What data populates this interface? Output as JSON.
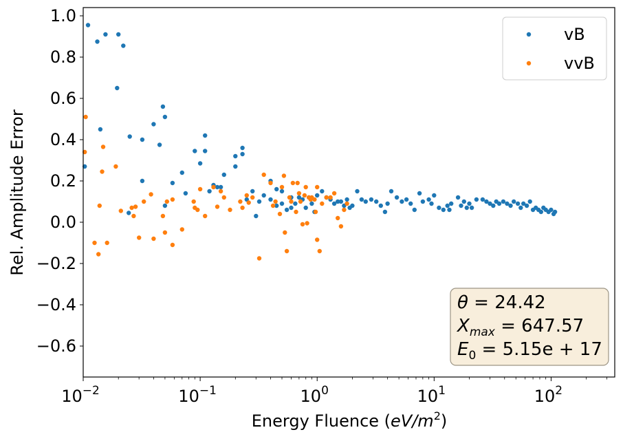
{
  "chart_data": {
    "type": "scatter",
    "title": "",
    "xlabel": "Energy Fluence ",
    "xlabel_unit": "eV/m",
    "xlabel_unit_exp": "2",
    "ylabel": "Rel. Amplitude Error",
    "xscale": "log",
    "xlim": [
      0.01,
      350
    ],
    "ylim": [
      -0.75,
      1.04
    ],
    "grid": false,
    "legend_position": "top-right",
    "x_ticks": [
      {
        "value": 0.01,
        "base": "10",
        "exp": "−2"
      },
      {
        "value": 0.1,
        "base": "10",
        "exp": "−1"
      },
      {
        "value": 1,
        "base": "10",
        "exp": "0"
      },
      {
        "value": 10,
        "base": "10",
        "exp": "1"
      },
      {
        "value": 100,
        "base": "10",
        "exp": "2"
      }
    ],
    "y_ticks": [
      {
        "value": -0.6,
        "label": "−0.6"
      },
      {
        "value": -0.4,
        "label": "−0.4"
      },
      {
        "value": -0.2,
        "label": "−0.2"
      },
      {
        "value": 0.0,
        "label": "0.0"
      },
      {
        "value": 0.2,
        "label": "0.2"
      },
      {
        "value": 0.4,
        "label": "0.4"
      },
      {
        "value": 0.6,
        "label": "0.6"
      },
      {
        "value": 0.8,
        "label": "0.8"
      },
      {
        "value": 1.0,
        "label": "1.0"
      }
    ],
    "annotation": {
      "lines": [
        {
          "sym": "θ",
          "sub": "",
          "rest": " = 24.42"
        },
        {
          "sym": "X",
          "sub": "max",
          "rest": " = 647.57"
        },
        {
          "sym": "E",
          "sub": "0",
          "rest": " = 5.15e + 17"
        }
      ],
      "background": "#f8eedc",
      "border": "#9c9585"
    },
    "series": [
      {
        "name": "vB",
        "color": "#1f77b4",
        "points": [
          [
            0.0103,
            0.27
          ],
          [
            0.011,
            0.955
          ],
          [
            0.0132,
            0.875
          ],
          [
            0.014,
            0.45
          ],
          [
            0.0155,
            0.91
          ],
          [
            0.02,
            0.91
          ],
          [
            0.0195,
            0.65
          ],
          [
            0.022,
            0.855
          ],
          [
            0.025,
            0.415
          ],
          [
            0.0245,
            0.045
          ],
          [
            0.032,
            0.4
          ],
          [
            0.032,
            0.2
          ],
          [
            0.04,
            0.475
          ],
          [
            0.045,
            0.375
          ],
          [
            0.048,
            0.56
          ],
          [
            0.05,
            0.51
          ],
          [
            0.05,
            0.08
          ],
          [
            0.058,
            0.19
          ],
          [
            0.07,
            0.24
          ],
          [
            0.075,
            0.14
          ],
          [
            0.09,
            0.345
          ],
          [
            0.1,
            0.285
          ],
          [
            0.11,
            0.42
          ],
          [
            0.11,
            0.345
          ],
          [
            0.12,
            0.15
          ],
          [
            0.13,
            0.18
          ],
          [
            0.14,
            0.17
          ],
          [
            0.15,
            0.17
          ],
          [
            0.16,
            0.23
          ],
          [
            0.2,
            0.32
          ],
          [
            0.2,
            0.27
          ],
          [
            0.23,
            0.36
          ],
          [
            0.23,
            0.33
          ],
          [
            0.25,
            0.11
          ],
          [
            0.28,
            0.15
          ],
          [
            0.3,
            0.03
          ],
          [
            0.32,
            0.1
          ],
          [
            0.35,
            0.13
          ],
          [
            0.4,
            0.2
          ],
          [
            0.4,
            0.11
          ],
          [
            0.45,
            0.16
          ],
          [
            0.45,
            0.08
          ],
          [
            0.5,
            0.15
          ],
          [
            0.5,
            0.09
          ],
          [
            0.55,
            0.06
          ],
          [
            0.6,
            0.12
          ],
          [
            0.6,
            0.07
          ],
          [
            0.65,
            0.09
          ],
          [
            0.7,
            0.12
          ],
          [
            0.75,
            0.11
          ],
          [
            0.8,
            0.07
          ],
          [
            0.85,
            0.12
          ],
          [
            0.9,
            0.09
          ],
          [
            0.95,
            0.05
          ],
          [
            1.0,
            0.13
          ],
          [
            1.1,
            0.15
          ],
          [
            1.2,
            0.12
          ],
          [
            1.3,
            0.11
          ],
          [
            1.4,
            0.09
          ],
          [
            1.5,
            0.1
          ],
          [
            1.6,
            0.1
          ],
          [
            1.7,
            0.08
          ],
          [
            1.8,
            0.11
          ],
          [
            1.9,
            0.07
          ],
          [
            2.0,
            0.08
          ],
          [
            2.2,
            0.15
          ],
          [
            2.4,
            0.11
          ],
          [
            2.6,
            0.1
          ],
          [
            2.9,
            0.11
          ],
          [
            3.2,
            0.1
          ],
          [
            3.5,
            0.08
          ],
          [
            3.8,
            0.05
          ],
          [
            4.0,
            0.09
          ],
          [
            4.3,
            0.15
          ],
          [
            4.8,
            0.12
          ],
          [
            5.3,
            0.1
          ],
          [
            5.8,
            0.11
          ],
          [
            6.3,
            0.09
          ],
          [
            6.8,
            0.06
          ],
          [
            7.5,
            0.14
          ],
          [
            8.0,
            0.1
          ],
          [
            9.0,
            0.11
          ],
          [
            9.5,
            0.09
          ],
          [
            10.0,
            0.13
          ],
          [
            11.0,
            0.07
          ],
          [
            12.0,
            0.06
          ],
          [
            13.0,
            0.08
          ],
          [
            13.5,
            0.06
          ],
          [
            14.0,
            0.09
          ],
          [
            16.0,
            0.12
          ],
          [
            17.0,
            0.08
          ],
          [
            18.0,
            0.1
          ],
          [
            19.0,
            0.07
          ],
          [
            20.0,
            0.09
          ],
          [
            21.0,
            0.07
          ],
          [
            23.0,
            0.11
          ],
          [
            26.0,
            0.11
          ],
          [
            28.0,
            0.1
          ],
          [
            30.0,
            0.09
          ],
          [
            32.0,
            0.08
          ],
          [
            34.0,
            0.1
          ],
          [
            36.0,
            0.09
          ],
          [
            39.0,
            0.1
          ],
          [
            42.0,
            0.09
          ],
          [
            45.0,
            0.08
          ],
          [
            48.0,
            0.1
          ],
          [
            52.0,
            0.09
          ],
          [
            55.0,
            0.07
          ],
          [
            58.0,
            0.09
          ],
          [
            62.0,
            0.08
          ],
          [
            66.0,
            0.1
          ],
          [
            70.0,
            0.06
          ],
          [
            74.0,
            0.07
          ],
          [
            78.0,
            0.06
          ],
          [
            82.0,
            0.05
          ],
          [
            86.0,
            0.07
          ],
          [
            90.0,
            0.06
          ],
          [
            95.0,
            0.05
          ],
          [
            100.0,
            0.06
          ],
          [
            105.0,
            0.04
          ],
          [
            108.0,
            0.05
          ]
        ]
      },
      {
        "name": "vvB",
        "color": "#ff7f0e",
        "points": [
          [
            0.0103,
            0.34
          ],
          [
            0.0105,
            0.51
          ],
          [
            0.0125,
            -0.1
          ],
          [
            0.0135,
            -0.155
          ],
          [
            0.0138,
            0.08
          ],
          [
            0.0145,
            0.245
          ],
          [
            0.0148,
            0.365
          ],
          [
            0.016,
            -0.1
          ],
          [
            0.019,
            0.27
          ],
          [
            0.021,
            0.055
          ],
          [
            0.026,
            0.07
          ],
          [
            0.027,
            0.03
          ],
          [
            0.028,
            0.075
          ],
          [
            0.03,
            -0.075
          ],
          [
            0.033,
            0.1
          ],
          [
            0.038,
            0.135
          ],
          [
            0.04,
            -0.08
          ],
          [
            0.048,
            0.03
          ],
          [
            0.05,
            -0.05
          ],
          [
            0.052,
            0.1
          ],
          [
            0.058,
            0.11
          ],
          [
            0.058,
            -0.11
          ],
          [
            0.07,
            -0.035
          ],
          [
            0.088,
            0.1
          ],
          [
            0.09,
            0.07
          ],
          [
            0.095,
            0.06
          ],
          [
            0.1,
            0.16
          ],
          [
            0.11,
            0.03
          ],
          [
            0.13,
            0.17
          ],
          [
            0.14,
            0.075
          ],
          [
            0.15,
            0.15
          ],
          [
            0.16,
            0.12
          ],
          [
            0.18,
            0.06
          ],
          [
            0.22,
            0.1
          ],
          [
            0.23,
            0.07
          ],
          [
            0.25,
            0.13
          ],
          [
            0.26,
            0.095
          ],
          [
            0.28,
            0.12
          ],
          [
            0.32,
            -0.175
          ],
          [
            0.35,
            0.23
          ],
          [
            0.4,
            0.19
          ],
          [
            0.42,
            0.08
          ],
          [
            0.44,
            0.1
          ],
          [
            0.48,
            0.04
          ],
          [
            0.5,
            0.17
          ],
          [
            0.52,
            0.225
          ],
          [
            0.53,
            -0.05
          ],
          [
            0.55,
            -0.14
          ],
          [
            0.58,
            0.12
          ],
          [
            0.6,
            0.1
          ],
          [
            0.62,
            0.19
          ],
          [
            0.66,
            0.05
          ],
          [
            0.68,
            0.19
          ],
          [
            0.7,
            0.14
          ],
          [
            0.72,
            0.1
          ],
          [
            0.75,
            -0.01
          ],
          [
            0.78,
            0.13
          ],
          [
            0.8,
            0.17
          ],
          [
            0.82,
            -0.005
          ],
          [
            0.85,
            0.12
          ],
          [
            0.88,
            0.11
          ],
          [
            0.9,
            0.12
          ],
          [
            0.95,
            0.11
          ],
          [
            0.97,
            0.05
          ],
          [
            1.0,
            0.17
          ],
          [
            1.0,
            -0.085
          ],
          [
            1.05,
            -0.14
          ],
          [
            1.1,
            0.09
          ],
          [
            1.2,
            0.12
          ],
          [
            1.3,
            0.12
          ],
          [
            1.4,
            0.14
          ],
          [
            1.5,
            0.02
          ],
          [
            1.6,
            -0.02
          ],
          [
            1.7,
            0.06
          ],
          [
            1.8,
            0.09
          ]
        ]
      }
    ]
  }
}
